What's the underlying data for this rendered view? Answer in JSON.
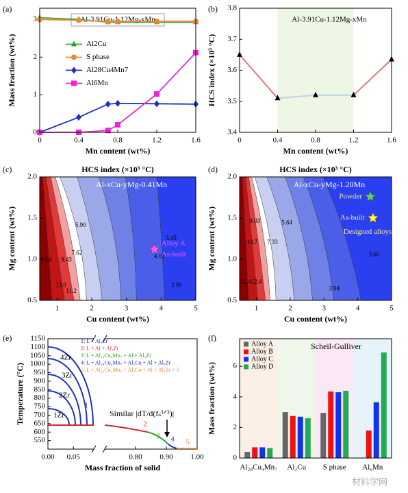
{
  "chart_data": [
    {
      "panel": "(a)",
      "type": "line",
      "annotation": "Al-3.91Cu-1.12Mg-xMn",
      "x": [
        0,
        0.4,
        0.7,
        0.8,
        1.2,
        1.6
      ],
      "xlim": [
        0,
        1.6
      ],
      "xticks": [
        0,
        0.4,
        0.8,
        1.2,
        1.6
      ],
      "ylim": [
        0,
        3.3
      ],
      "yticks": [
        0,
        1,
        2,
        3
      ],
      "xlabel": "Mn content (wt%)",
      "ylabel": "Mass fraction (wt%)",
      "legend": "center-left",
      "series": [
        {
          "name": "Al2Cu",
          "color": "#2ca02c",
          "marker": "triangle",
          "values": [
            3.05,
            3.0,
            2.93,
            2.93,
            2.93,
            2.93
          ]
        },
        {
          "name": "S phase",
          "color": "#e8893a",
          "marker": "circle",
          "values": [
            3.0,
            2.98,
            2.95,
            2.95,
            2.95,
            2.95
          ]
        },
        {
          "name": "Al28Cu4Mn7",
          "color": "#1f2fbf",
          "marker": "diamond",
          "values": [
            0,
            0.4,
            0.75,
            0.77,
            0.76,
            0.75
          ]
        },
        {
          "name": "Al6Mn",
          "color": "#ee22dd",
          "marker": "square",
          "values": [
            0,
            0,
            0.05,
            0.2,
            1.02,
            2.12
          ]
        }
      ]
    },
    {
      "panel": "(b)",
      "type": "segments",
      "annotation": "Al-3.91Cu-1.12Mg-xMn",
      "x": [
        0,
        0.4,
        0.8,
        1.2,
        1.6
      ],
      "values": [
        3.65,
        3.51,
        3.52,
        3.52,
        3.635
      ],
      "segment_colors": [
        "#e07a7a",
        "#b9d3ea",
        "#b9d3ea",
        "#e07a7a"
      ],
      "marker_color": "#000000",
      "span": [
        0.4,
        1.2
      ],
      "span_color": "#eef6e6",
      "xlim": [
        0,
        1.6
      ],
      "xticks": [
        0,
        0.4,
        0.8,
        1.2,
        1.6
      ],
      "ylim": [
        3.4,
        3.8
      ],
      "yticks": [
        3.4,
        3.5,
        3.6,
        3.7,
        3.8
      ],
      "xlabel": "Mn content (wt%)",
      "ylabel": "HCS index (×10³ °C)"
    },
    {
      "panel": "(c)",
      "type": "contour",
      "title": "HCS index (×10³ °C)",
      "annotation": "Al-xCu-yMg-0.41Mn",
      "xlim": [
        0.5,
        5
      ],
      "xticks": [
        1,
        2,
        3,
        4,
        5
      ],
      "ylim": [
        0.5,
        2
      ],
      "yticks": [
        0.5,
        {
          "value": 1,
          "label": "1.0"
        },
        1.5,
        {
          "value": 2,
          "label": "2.0"
        }
      ],
      "xlabel": "Cu content (wt%)",
      "ylabel": "Mg content (wt%)",
      "labels": [
        {
          "value": 13,
          "label": "13.0",
          "x": 0.7,
          "y": 0.99
        },
        {
          "value": 9.43,
          "label": "9.43",
          "x": 1.27,
          "y": 0.99
        },
        {
          "value": 7.62,
          "label": "7.62",
          "x": 1.57,
          "y": 1.07
        },
        {
          "value": 5.9,
          "label": "5.90",
          "x": 1.68,
          "y": 1.41
        },
        {
          "value": 13,
          "label": "13.0",
          "x": 1.11,
          "y": 0.68
        },
        {
          "value": 11.2,
          "label": "11.2",
          "x": 1.41,
          "y": 0.61
        },
        {
          "value": 3.45,
          "label": "3.45",
          "x": 4.29,
          "y": 1.25
        },
        {
          "value": 4.01,
          "label": "4.01",
          "x": 3.95,
          "y": 1.03
        },
        {
          "value": 3.9,
          "label": "3.90",
          "x": 4.44,
          "y": 0.68
        }
      ],
      "points": [
        {
          "x": 3.81,
          "y": 1.12,
          "color": "#ff55ff",
          "label": [
            "Alloy A",
            "As-built"
          ]
        }
      ]
    },
    {
      "panel": "(d)",
      "type": "contour",
      "title": "HCS index (×10³ °C)",
      "annotation": "Al-xCu-yMg-1.20Mn",
      "xlim": [
        0.5,
        5
      ],
      "xticks": [
        1,
        2,
        3,
        4,
        5
      ],
      "ylim": [
        0.5,
        2
      ],
      "yticks": [
        0.5,
        {
          "value": 1,
          "label": "1.0"
        },
        1.5,
        {
          "value": 2,
          "label": "2.0"
        }
      ],
      "xlabel": "Cu content (wt%)",
      "ylabel": "Mg content (wt%)",
      "labels": [
        {
          "value": 9.03,
          "label": "9.03",
          "x": 0.95,
          "y": 1.46
        },
        {
          "value": 5.64,
          "label": "5.64",
          "x": 1.9,
          "y": 1.44
        },
        {
          "value": 7.33,
          "label": "7.33",
          "x": 1.47,
          "y": 1.2
        },
        {
          "value": 10.7,
          "label": "10.7",
          "x": 0.87,
          "y": 1.2
        },
        {
          "value": 12.4,
          "label": "12.4",
          "x": 0.68,
          "y": 0.72
        },
        {
          "value": 12.4,
          "label": "12.4",
          "x": 1.0,
          "y": 0.72
        },
        {
          "value": 3.94,
          "label": "3.94",
          "x": 3.3,
          "y": 0.64
        },
        {
          "value": 3.6,
          "label": "3.60",
          "x": 4.48,
          "y": 1.05
        }
      ],
      "points": [
        {
          "x": 4.37,
          "y": 1.76,
          "color": "#5fd35f",
          "label": [
            "Powder"
          ]
        },
        {
          "x": 4.45,
          "y": 1.5,
          "color": "#ffff33",
          "label": [
            "As-built"
          ]
        }
      ],
      "note": "Designed alloys"
    },
    {
      "panel": "(e)",
      "type": "solidification",
      "xlim_segments": [
        [
          0,
          0.09
        ],
        [
          0.7,
          1.0
        ]
      ],
      "xticks": [
        {
          "value": 0,
          "label": "0.00"
        },
        {
          "value": 0.05,
          "label": "0.05"
        },
        {
          "value": 0.8,
          "label": "0.80"
        },
        {
          "value": 0.9,
          "label": "0.90"
        },
        {
          "value": 1,
          "label": "1.00"
        }
      ],
      "ylim": [
        500,
        1150
      ],
      "yticks": [
        550,
        600,
        650,
        700,
        750,
        800,
        850,
        900,
        950,
        1000,
        1050,
        1100,
        1150
      ],
      "xlabel": "Mass fraction of solid",
      "ylabel": "Temperature (°C)",
      "reactions": [
        {
          "name": "1: L + Al₃Zr",
          "color": "#1f2fbf"
        },
        {
          "name": "2: L + Al + Al₃Zr",
          "color": "#d62728"
        },
        {
          "name": "3: L + Al₂₈Cu₄Mn₇ + Al + Al₃Zr",
          "color": "#2ca02c"
        },
        {
          "name": "4: L + Al₂₈Cu₄Mn₇ + Al₂Cu + Al + Al₃Zr",
          "color": "#1f2fbf"
        },
        {
          "name": "5: L + Al₂₈Cu₄Mn₇ + Al₂Cu + Al + Al₃Zr + S",
          "color": "#e8893a"
        }
      ],
      "curve_labels": [
        "1",
        "2",
        "3",
        "4",
        "5"
      ],
      "zr_labels": [
        "4Zr",
        "3Zr",
        "2Zr",
        "1Zr"
      ],
      "annotation": "Similar |dT/d(fₛ¹ᐟ²)|"
    },
    {
      "panel": "(f)",
      "type": "grouped-bar",
      "title": "Scheil-Gulliver",
      "categories": [
        "Al₂₈Cu₄Mn₇",
        "Al₂Cu",
        "S phase",
        "Al₆Mn"
      ],
      "band_colors": [
        "#fcefe6",
        "#eef7ea",
        "#fbe8f6",
        "#e6f3fb"
      ],
      "ylim": [
        0,
        7.8
      ],
      "yticks": [
        0,
        2,
        4,
        6
      ],
      "ylabel": "Mass fraction (wt%)",
      "legend": "top-left",
      "series": [
        {
          "name": "Alloy A",
          "color": "#666666",
          "values": [
            0.4,
            3.0,
            2.95,
            0
          ]
        },
        {
          "name": "Alloy B",
          "color": "#ee1111",
          "values": [
            0.7,
            2.75,
            4.35,
            1.8
          ]
        },
        {
          "name": "Alloy C",
          "color": "#1133ee",
          "values": [
            0.7,
            2.7,
            4.3,
            3.65
          ]
        },
        {
          "name": "Alloy D",
          "color": "#22aa55",
          "values": [
            0.65,
            2.6,
            4.4,
            6.9
          ]
        }
      ]
    }
  ],
  "watermark": "材料学网"
}
